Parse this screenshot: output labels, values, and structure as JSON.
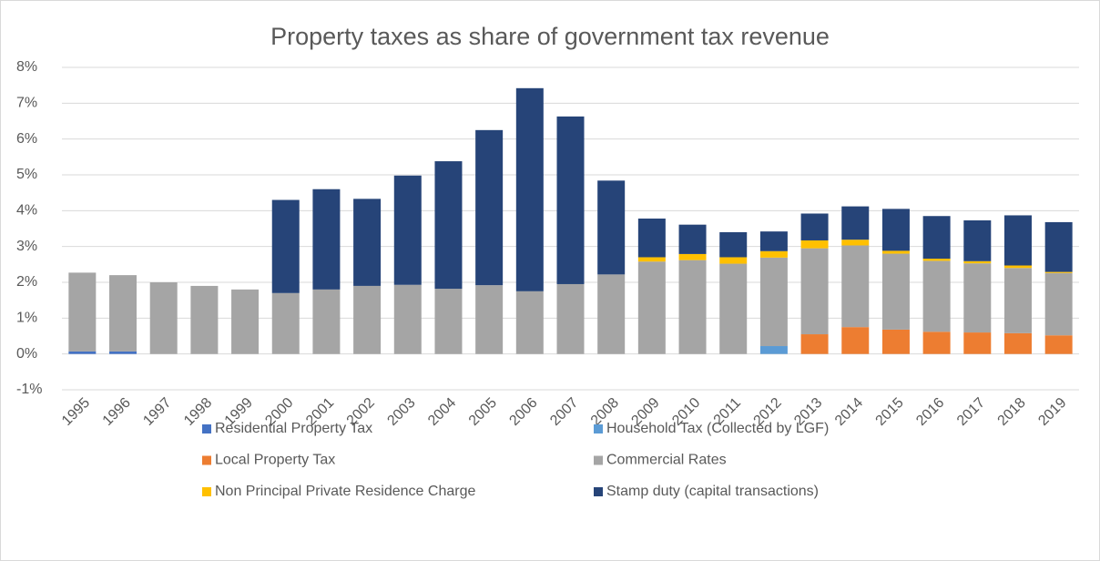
{
  "chart_data": {
    "type": "stacked-bar",
    "title": "Property taxes as share of government tax revenue",
    "categories": [
      "1995",
      "1996",
      "1997",
      "1998",
      "1999",
      "2000",
      "2001",
      "2002",
      "2003",
      "2004",
      "2005",
      "2006",
      "2007",
      "2008",
      "2009",
      "2010",
      "2011",
      "2012",
      "2013",
      "2014",
      "2015",
      "2016",
      "2017",
      "2018",
      "2019"
    ],
    "series": [
      {
        "name": "Residential Property Tax",
        "color": "#4472c4",
        "values": [
          0.07,
          0.07,
          0,
          0,
          0,
          0,
          0,
          0,
          0,
          0,
          0,
          0,
          0,
          0,
          0,
          0,
          0,
          0,
          0,
          0,
          0,
          0,
          0,
          0,
          0
        ]
      },
      {
        "name": "Household Tax (Collected by LGF)",
        "color": "#5b9bd5",
        "values": [
          0,
          0,
          0,
          0,
          0,
          0,
          0,
          0,
          0,
          0,
          0,
          0,
          0,
          0,
          0,
          0,
          0,
          0.22,
          0,
          0,
          0,
          0,
          0,
          0,
          0
        ]
      },
      {
        "name": "Local Property Tax",
        "color": "#ed7d31",
        "values": [
          0,
          0,
          0,
          0,
          0,
          0,
          0,
          0,
          0,
          0,
          0,
          0,
          0,
          0,
          0,
          0,
          0,
          0,
          0.55,
          0.75,
          0.68,
          0.62,
          0.6,
          0.58,
          0.52
        ]
      },
      {
        "name": "Commercial Rates",
        "color": "#a5a5a5",
        "values": [
          2.2,
          2.13,
          2.0,
          1.9,
          1.8,
          1.7,
          1.8,
          1.9,
          1.93,
          1.82,
          1.92,
          1.75,
          1.95,
          2.22,
          2.58,
          2.62,
          2.52,
          2.47,
          2.4,
          2.28,
          2.12,
          1.98,
          1.93,
          1.82,
          1.74
        ]
      },
      {
        "name": "Non Principal Private Residence Charge",
        "color": "#ffc000",
        "values": [
          0,
          0,
          0,
          0,
          0,
          0,
          0,
          0,
          0,
          0,
          0,
          0,
          0,
          0,
          0.12,
          0.17,
          0.18,
          0.18,
          0.22,
          0.16,
          0.08,
          0.06,
          0.06,
          0.07,
          0.03
        ]
      },
      {
        "name": "Stamp duty (capital transactions)",
        "color": "#264478",
        "values": [
          0,
          0,
          0,
          0,
          0,
          2.6,
          2.8,
          2.43,
          3.05,
          3.56,
          4.33,
          5.67,
          4.68,
          2.62,
          1.08,
          0.82,
          0.7,
          0.55,
          0.75,
          0.93,
          1.17,
          1.19,
          1.14,
          1.4,
          1.39
        ]
      }
    ],
    "ylim": [
      -1,
      8
    ],
    "yticks": [
      {
        "value": -1,
        "label": "-1%"
      },
      {
        "value": 0,
        "label": "0%"
      },
      {
        "value": 1,
        "label": "1%"
      },
      {
        "value": 2,
        "label": "2%"
      },
      {
        "value": 3,
        "label": "3%"
      },
      {
        "value": 4,
        "label": "4%"
      },
      {
        "value": 5,
        "label": "5%"
      },
      {
        "value": 6,
        "label": "6%"
      },
      {
        "value": 7,
        "label": "7%"
      },
      {
        "value": 8,
        "label": "8%"
      }
    ],
    "grid": true
  }
}
